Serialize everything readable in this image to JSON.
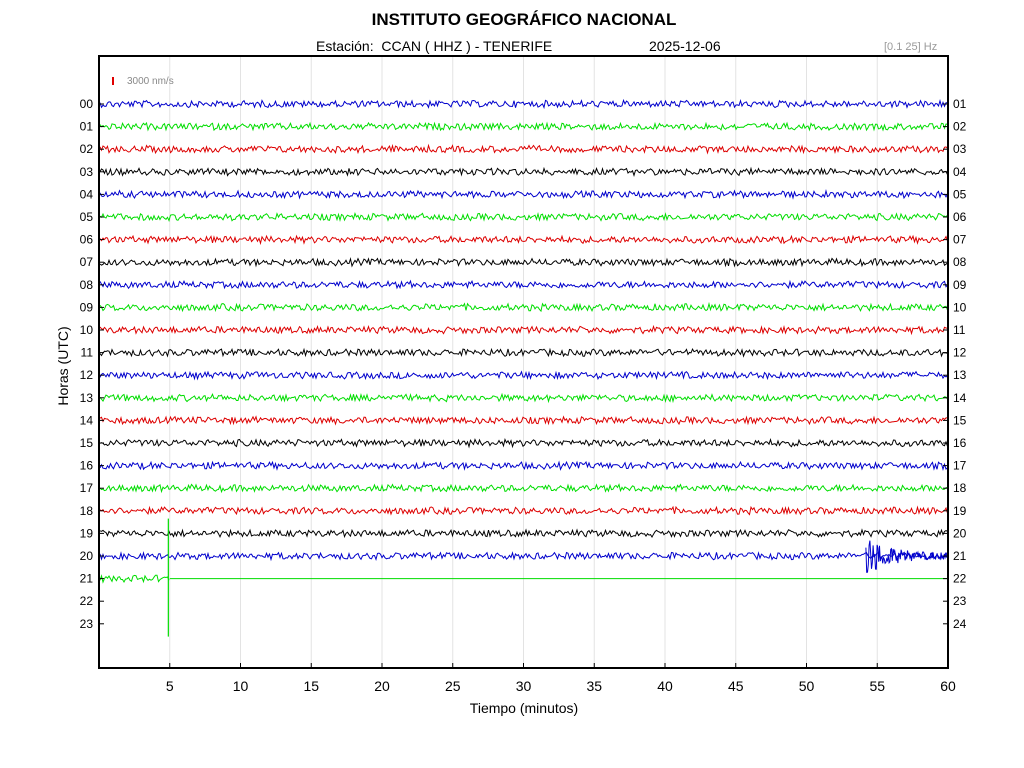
{
  "header": {
    "title": "INSTITUTO GEOGRÁFICO NACIONAL",
    "station_line": "Estación:  CCAN ( HHZ ) - TENERIFE",
    "date": "2025-12-06",
    "filter_band": "[0.1 25] Hz",
    "scale_label": "3000 nm/s",
    "scale_color": "#e00000"
  },
  "chart_data": {
    "type": "line",
    "title": "INSTITUTO GEOGRÁFICO NACIONAL",
    "xlabel": "Tiempo (minutos)",
    "ylabel": "Horas (UTC)",
    "xlim": [
      0,
      60
    ],
    "xticks": [
      5,
      10,
      15,
      20,
      25,
      30,
      35,
      40,
      45,
      50,
      55,
      60
    ],
    "grid": true,
    "left_ticks": [
      "00",
      "01",
      "02",
      "03",
      "04",
      "05",
      "06",
      "07",
      "08",
      "09",
      "10",
      "11",
      "12",
      "13",
      "14",
      "15",
      "16",
      "17",
      "18",
      "19",
      "20",
      "21",
      "22",
      "23"
    ],
    "right_ticks": [
      "01",
      "02",
      "03",
      "04",
      "05",
      "06",
      "07",
      "08",
      "09",
      "10",
      "11",
      "12",
      "13",
      "14",
      "15",
      "16",
      "17",
      "18",
      "19",
      "20",
      "21",
      "22",
      "23",
      "24"
    ],
    "trace_colors": [
      "#0000cc",
      "#00dd00",
      "#dd0000",
      "#000000"
    ],
    "series": [
      {
        "hour": "00",
        "color": "#0000cc",
        "x_end": 60
      },
      {
        "hour": "01",
        "color": "#00dd00",
        "x_end": 60
      },
      {
        "hour": "02",
        "color": "#dd0000",
        "x_end": 60
      },
      {
        "hour": "03",
        "color": "#000000",
        "x_end": 60
      },
      {
        "hour": "04",
        "color": "#0000cc",
        "x_end": 60
      },
      {
        "hour": "05",
        "color": "#00dd00",
        "x_end": 60
      },
      {
        "hour": "06",
        "color": "#dd0000",
        "x_end": 60
      },
      {
        "hour": "07",
        "color": "#000000",
        "x_end": 60
      },
      {
        "hour": "08",
        "color": "#0000cc",
        "x_end": 60
      },
      {
        "hour": "09",
        "color": "#00dd00",
        "x_end": 60
      },
      {
        "hour": "10",
        "color": "#dd0000",
        "x_end": 60
      },
      {
        "hour": "11",
        "color": "#000000",
        "x_end": 60
      },
      {
        "hour": "12",
        "color": "#0000cc",
        "x_end": 60
      },
      {
        "hour": "13",
        "color": "#00dd00",
        "x_end": 60
      },
      {
        "hour": "14",
        "color": "#dd0000",
        "x_end": 60
      },
      {
        "hour": "15",
        "color": "#000000",
        "x_end": 60
      },
      {
        "hour": "16",
        "color": "#0000cc",
        "x_end": 60
      },
      {
        "hour": "17",
        "color": "#00dd00",
        "x_end": 60
      },
      {
        "hour": "18",
        "color": "#dd0000",
        "x_end": 60
      },
      {
        "hour": "19",
        "color": "#000000",
        "x_end": 60
      },
      {
        "hour": "20",
        "color": "#0000cc",
        "x_end": 60,
        "events": [
          {
            "x": 54.2,
            "kind": "earthquake"
          }
        ]
      },
      {
        "hour": "21",
        "color": "#00dd00",
        "x_end": 5,
        "events": [
          {
            "x": 4.9,
            "kind": "spike"
          }
        ]
      }
    ]
  }
}
